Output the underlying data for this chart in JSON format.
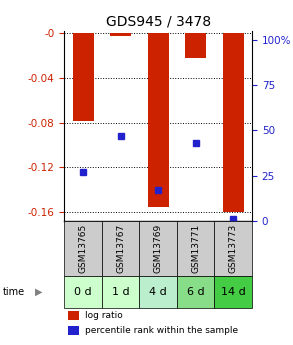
{
  "title": "GDS945 / 3478",
  "samples": [
    "GSM13765",
    "GSM13767",
    "GSM13769",
    "GSM13771",
    "GSM13773"
  ],
  "time_labels": [
    "0 d",
    "1 d",
    "4 d",
    "6 d",
    "14 d"
  ],
  "log_ratio": [
    -0.079,
    -0.002,
    -0.156,
    -0.022,
    -0.16
  ],
  "percentile_rank": [
    27,
    47,
    17,
    43,
    1
  ],
  "ylim_left": [
    -0.168,
    0.002
  ],
  "ylim_right": [
    0,
    105
  ],
  "yticks_left": [
    0,
    -0.04,
    -0.08,
    -0.12,
    -0.16
  ],
  "ytick_labels_left": [
    "-0",
    "-0.04",
    "-0.08",
    "-0.12",
    "-0.16"
  ],
  "yticks_right": [
    0,
    25,
    50,
    75,
    100
  ],
  "ytick_labels_right": [
    "0",
    "25",
    "50",
    "75",
    "100%"
  ],
  "bar_color": "#cc2200",
  "dot_color": "#2222cc",
  "label_bg_color": "#cccccc",
  "time_bg_colors": [
    "#ccffcc",
    "#ccffcc",
    "#bbeecc",
    "#88dd88",
    "#44cc44"
  ],
  "bar_width": 0.55,
  "title_fontsize": 10,
  "tick_fontsize": 7.5,
  "sample_fontsize": 6.5,
  "time_fontsize": 8
}
